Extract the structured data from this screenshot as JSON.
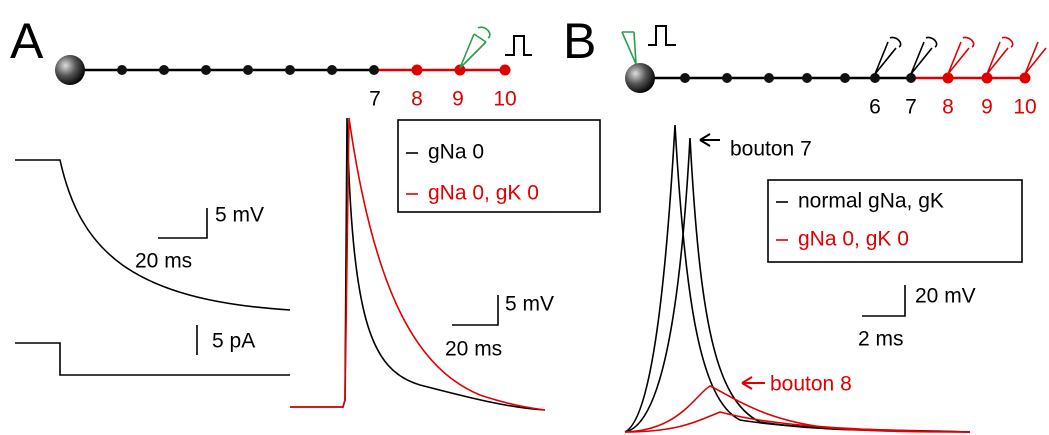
{
  "panels": [
    {
      "label": "A",
      "node_labels": [
        "7",
        "8",
        "9",
        "10"
      ],
      "legend": [
        "gNa 0",
        "gNa 0, gK 0"
      ],
      "scale_bars": [
        "5 mV",
        "20 ms",
        "5 pA",
        "5 mV",
        "20 ms"
      ]
    },
    {
      "label": "B",
      "node_labels": [
        "6",
        "7",
        "8",
        "9",
        "10"
      ],
      "annotations": [
        "bouton 7",
        "bouton 8"
      ],
      "legend": [
        "normal gNa, gK",
        "gNa 0, gK 0"
      ],
      "scale_bars": [
        "20 mV",
        "2 ms"
      ]
    }
  ]
}
